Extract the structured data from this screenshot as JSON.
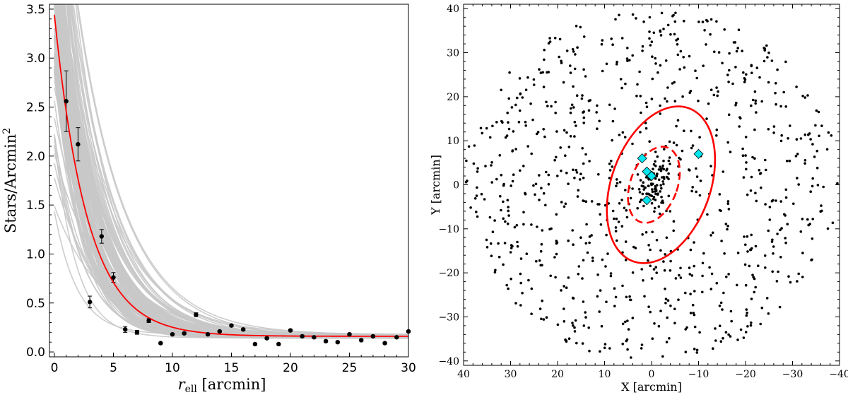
{
  "chart_data": [
    {
      "type": "scatter",
      "panel": "left",
      "xlabel_main": "r",
      "xlabel_sub": "ell",
      "xlabel_rest": " [arcmin]",
      "ylabel_main": "Stars/Arcmin",
      "ylabel_sup": "2",
      "xlim": [
        0,
        30
      ],
      "ylim": [
        -0.05,
        3.55
      ],
      "xticks": [
        0,
        5,
        10,
        15,
        20,
        25,
        30
      ],
      "yticks": [
        0.0,
        0.5,
        1.0,
        1.5,
        2.0,
        2.5,
        3.0,
        3.5
      ],
      "grid": false,
      "series": [
        {
          "kind": "points_with_errorbars",
          "color": "#000000",
          "x": [
            1,
            2,
            3,
            4,
            5,
            6,
            7,
            8,
            9,
            10,
            11,
            12,
            13,
            14,
            15,
            16,
            17,
            18,
            19,
            20,
            21,
            22,
            23,
            24,
            25,
            26,
            27,
            28,
            29,
            30
          ],
          "y": [
            2.56,
            2.12,
            0.51,
            1.18,
            0.76,
            0.23,
            0.2,
            0.32,
            0.09,
            0.18,
            0.19,
            0.38,
            0.18,
            0.21,
            0.27,
            0.23,
            0.08,
            0.14,
            0.08,
            0.22,
            0.16,
            0.15,
            0.11,
            0.1,
            0.18,
            0.12,
            0.16,
            0.09,
            0.15,
            0.21
          ],
          "yerr": [
            0.31,
            0.17,
            0.06,
            0.07,
            0.05,
            0.03,
            0.02,
            0.02,
            0.01,
            0.01,
            0.01,
            0.02,
            0.01,
            0.01,
            0.01,
            0.01,
            0.01,
            0.01,
            0.01,
            0.01,
            0.01,
            0.01,
            0.01,
            0.01,
            0.01,
            0.01,
            0.01,
            0.01,
            0.01,
            0.01
          ]
        },
        {
          "kind": "best_fit_curve",
          "color": "#ff0000",
          "model": "exponential_plus_background",
          "amplitude": 3.28,
          "scale_radius": 2.8,
          "background": 0.16
        },
        {
          "kind": "posterior_sample_curves",
          "color": "#c8c8c8",
          "count": 60,
          "amplitude_range": [
            1.2,
            6.0
          ],
          "scale_radius_range": [
            1.8,
            4.2
          ],
          "background_range": [
            0.14,
            0.18
          ]
        }
      ]
    },
    {
      "type": "scatter",
      "panel": "right",
      "xlabel": "X [arcmin]",
      "ylabel": "Y [arcmin]",
      "xlim": [
        40,
        -40
      ],
      "ylim": [
        -41,
        41
      ],
      "xticks": [
        40,
        30,
        20,
        10,
        0,
        -10,
        -20,
        -30,
        -40
      ],
      "yticks": [
        -40,
        -30,
        -20,
        -10,
        0,
        10,
        20,
        30,
        40
      ],
      "grid": false,
      "field_radius": 40,
      "star_count": 850,
      "central_overdensity_count": 75,
      "star_color": "#000000",
      "ellipses": [
        {
          "style": "solid",
          "color": "#ff0000",
          "center": [
            -2,
            0
          ],
          "semi_major": 18.5,
          "semi_minor": 10.5,
          "angle_from_y_deg": -20
        },
        {
          "style": "dashed",
          "color": "#ff0000",
          "center": [
            -0.5,
            0
          ],
          "semi_major": 9,
          "semi_minor": 5,
          "angle_from_y_deg": -20
        }
      ],
      "highlighted_stars": {
        "marker": "diamond",
        "color": "#00e5ee",
        "points": [
          [
            2,
            6
          ],
          [
            1,
            3
          ],
          [
            0,
            2
          ],
          [
            -10,
            7
          ],
          [
            1,
            -3.5
          ]
        ]
      }
    }
  ]
}
